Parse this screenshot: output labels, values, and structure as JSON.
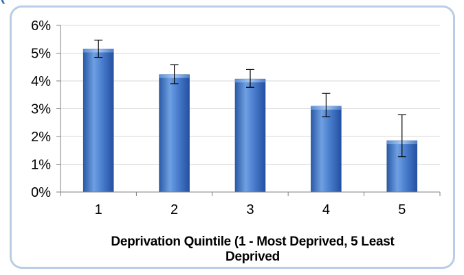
{
  "chart_data": {
    "type": "bar",
    "title": "",
    "xlabel": "Deprivation Quintile (1 - Most Deprived, 5 Least Deprived",
    "ylabel": "",
    "categories": [
      "1",
      "2",
      "3",
      "4",
      "5"
    ],
    "values": [
      5.15,
      4.23,
      4.07,
      3.09,
      1.85
    ],
    "error_low": [
      4.85,
      3.9,
      3.77,
      2.71,
      1.27
    ],
    "error_high": [
      5.47,
      4.58,
      4.41,
      3.55,
      2.78
    ],
    "y_ticks": [
      "0%",
      "1%",
      "2%",
      "3%",
      "4%",
      "5%",
      "6%"
    ],
    "ylim": [
      0,
      6
    ],
    "unit": "%",
    "grid": true,
    "legend": "none",
    "bar_color": "#3a6fc4",
    "bar_highlight": "#8db4ea",
    "grid_color": "#d9d9d9",
    "frame_color": "#b9cde5"
  },
  "page": {
    "top_fragment": "("
  }
}
